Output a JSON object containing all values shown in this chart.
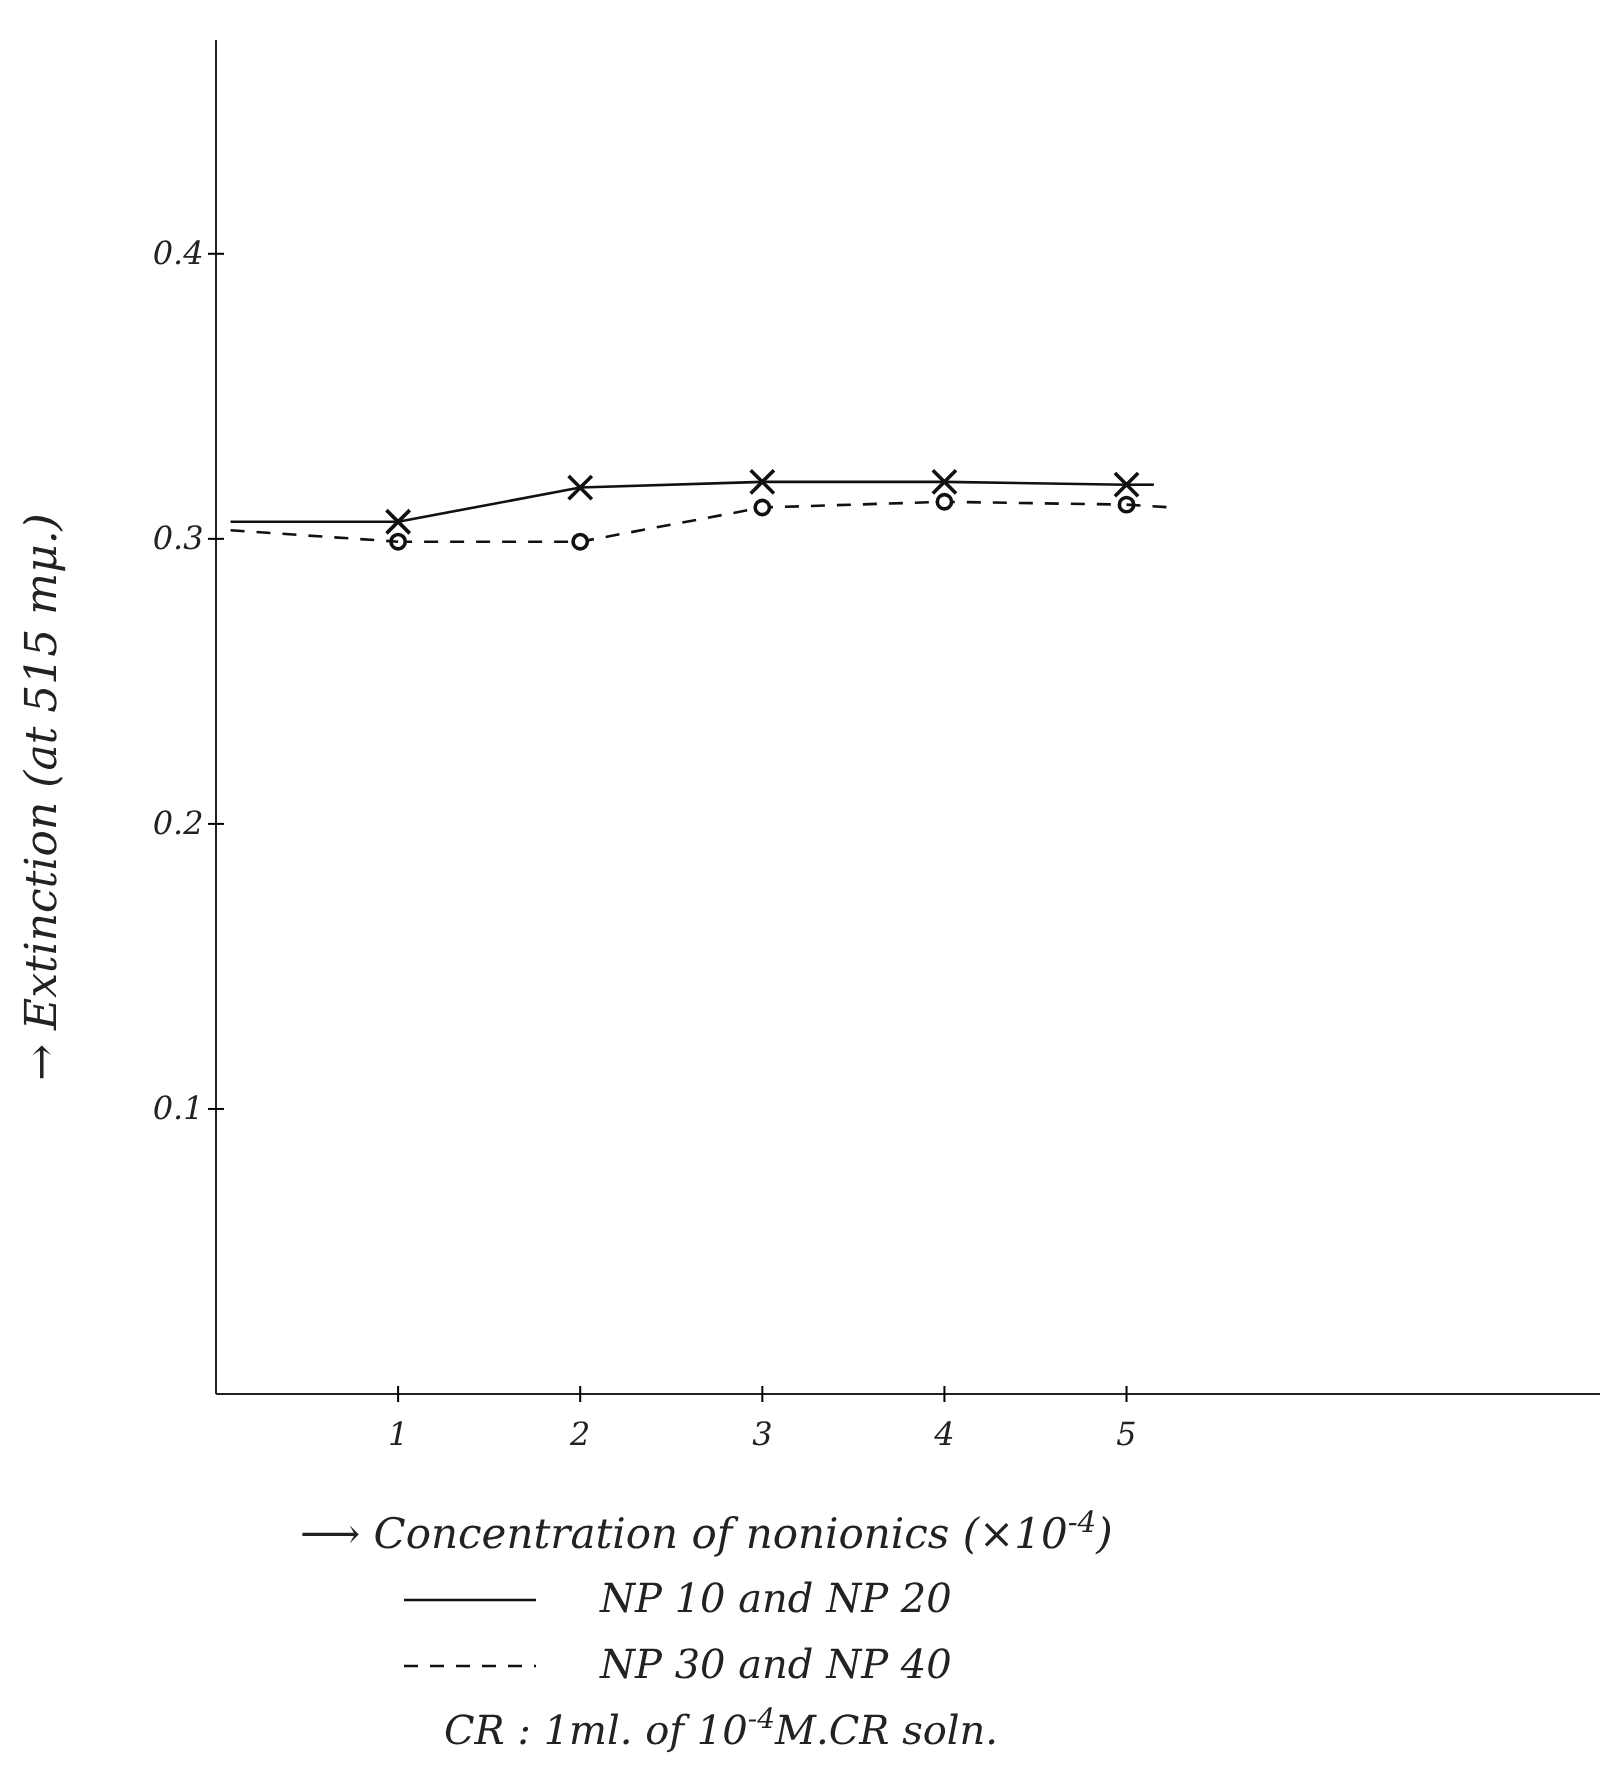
{
  "chart_data": {
    "type": "line",
    "xlabel": "⟶ Concentration of nonionics (×10$^{-4}$)",
    "ylabel": "→ Extinction (at 515 mμ.)",
    "xlim": [
      0,
      7.6
    ],
    "ylim": [
      0,
      0.475
    ],
    "xticks": [
      1,
      2,
      3,
      4,
      5
    ],
    "yticks": [
      0.1,
      0.2,
      0.3,
      0.4
    ],
    "grid": false,
    "legend": "bottom",
    "annotations": [
      "CR : 1ml. of 10$^{-4}$M.CR soln."
    ],
    "series": [
      {
        "name": "NP 10 and NP 20",
        "color": "#111111",
        "x": [
          1,
          2,
          3,
          4,
          5
        ],
        "values": [
          0.306,
          0.318,
          0.32,
          0.32,
          0.319
        ],
        "marker": "cross",
        "line_style": "solid"
      },
      {
        "name": "NP 30 and NP 40",
        "color": "#111111",
        "x": [
          1,
          2,
          3,
          4,
          5
        ],
        "values": [
          0.299,
          0.299,
          0.311,
          0.313,
          0.312
        ],
        "marker": "circle",
        "line_style": "dashed"
      },
      {
        "color": "#111111",
        "x": [
          0.08,
          1
        ],
        "values": [
          0.306,
          0.306
        ],
        "marker": "none",
        "line_style": "solid"
      },
      {
        "color": "#111111",
        "x": [
          5,
          5.15
        ],
        "values": [
          0.319,
          0.319
        ],
        "marker": "none",
        "line_style": "solid"
      },
      {
        "color": "#111111",
        "x": [
          0.08,
          1
        ],
        "values": [
          0.303,
          0.299
        ],
        "marker": "none",
        "line_style": "dashed"
      },
      {
        "color": "#111111",
        "x": [
          5,
          5.25
        ],
        "values": [
          0.312,
          0.311
        ],
        "marker": "none",
        "line_style": "dashed"
      }
    ]
  }
}
